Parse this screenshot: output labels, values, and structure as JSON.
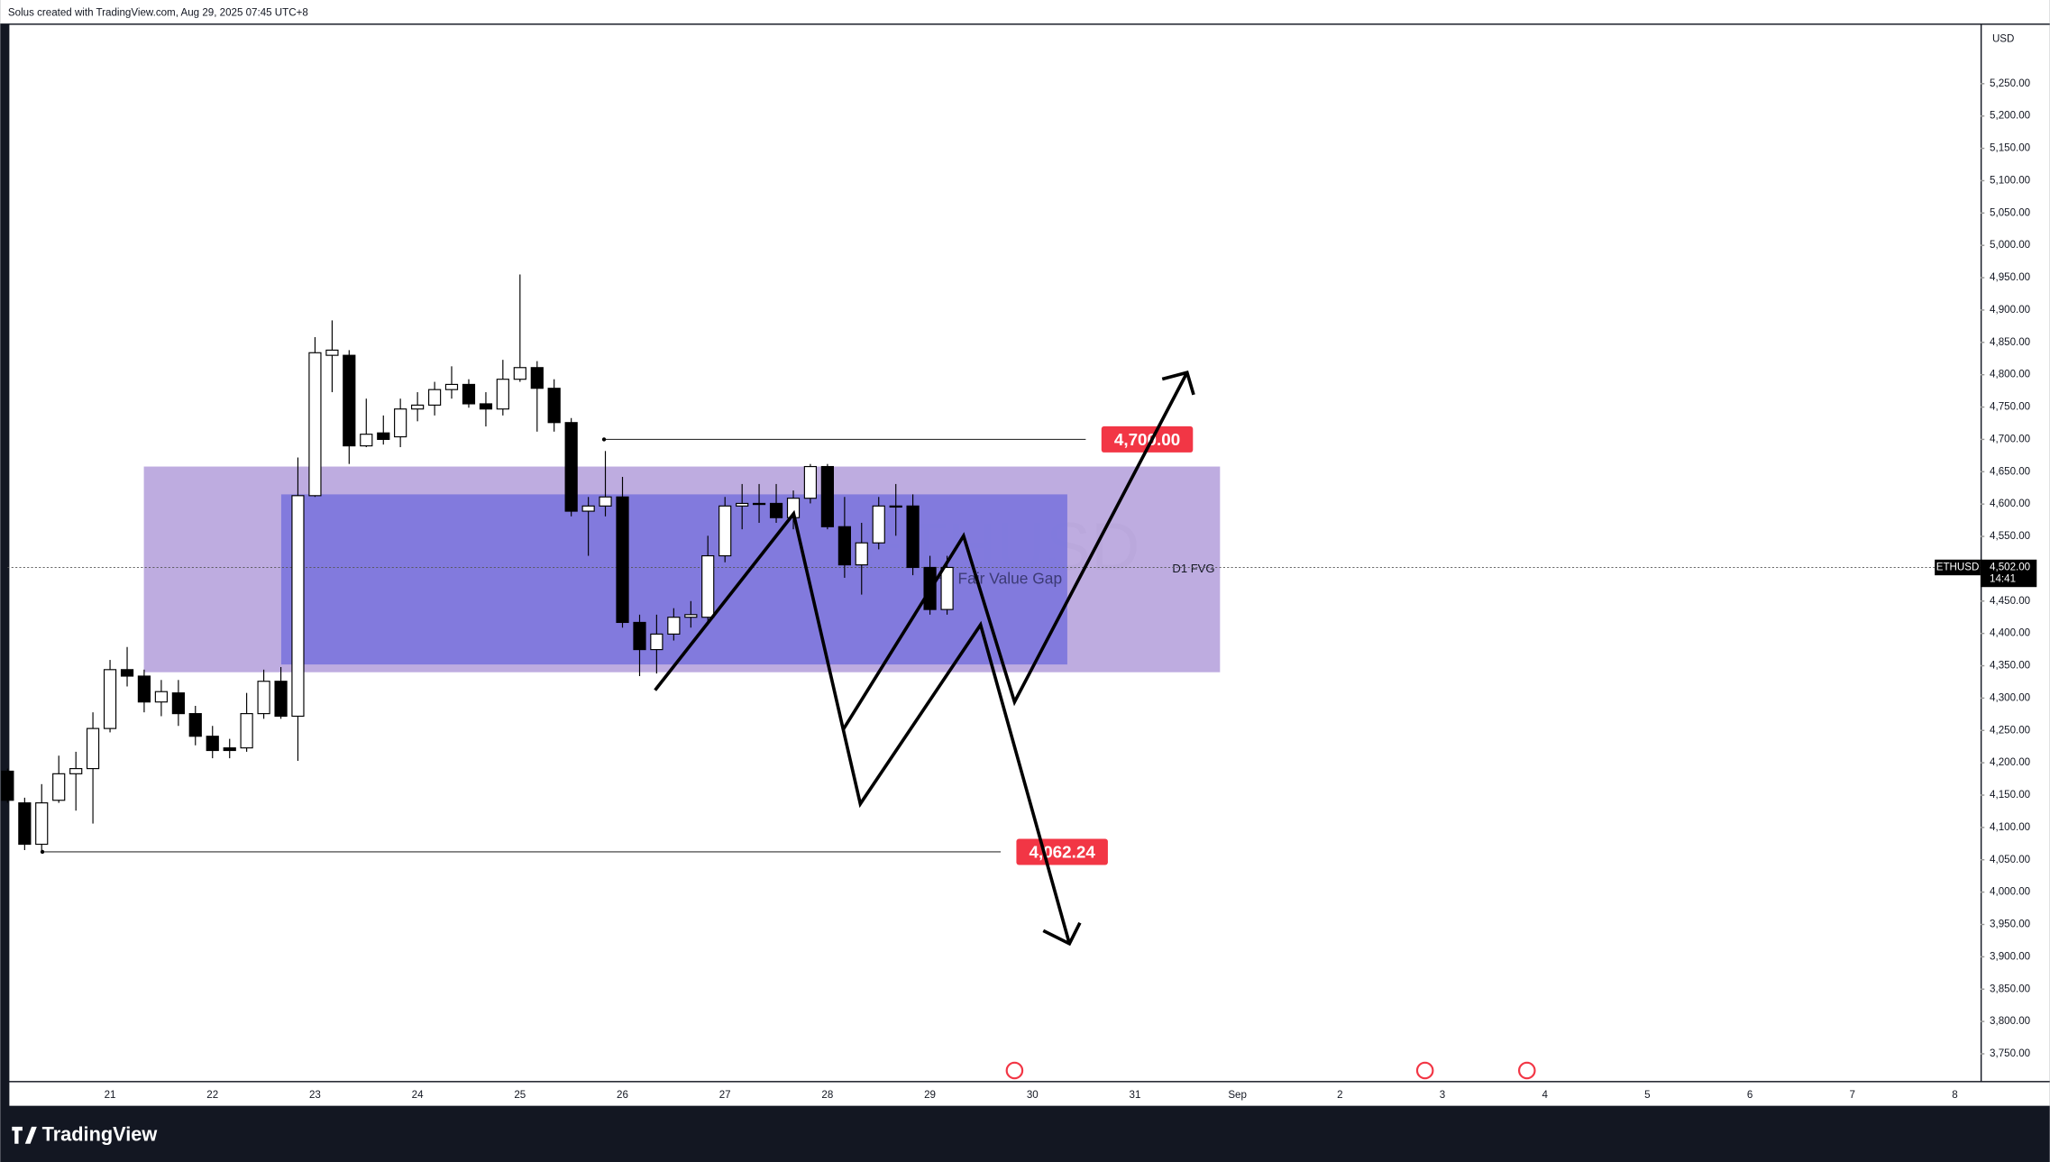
{
  "header": "Solus created with TradingView.com, Aug 29, 2025 07:45 UTC+8",
  "footer_logo": "TradingView",
  "chart_data": {
    "type": "candlestick",
    "symbol": "ETHUSD",
    "y_axis_label": "USD",
    "up_color": "#ffffff",
    "down_color": "#000000",
    "x": [
      20,
      20.167,
      20.333,
      20.5,
      20.667,
      20.833,
      21,
      21.167,
      21.333,
      21.5,
      21.667,
      21.833,
      22,
      22.167,
      22.333,
      22.5,
      22.667,
      22.833,
      23,
      23.167,
      23.333,
      23.5,
      23.667,
      23.833,
      24,
      24.167,
      24.333,
      24.5,
      24.667,
      24.833,
      25,
      25.167,
      25.333,
      25.5,
      25.667,
      25.833,
      26,
      26.167,
      26.333,
      26.5,
      26.667,
      26.833,
      27,
      27.167,
      27.333,
      27.5,
      27.667,
      27.833,
      28,
      28.167,
      28.333,
      28.5,
      28.667,
      28.833,
      29,
      29.167
    ],
    "open": [
      4187,
      4138,
      4074,
      4142,
      4183,
      4191,
      4253,
      4344,
      4334,
      4294,
      4308,
      4276,
      4241,
      4223,
      4223,
      4276,
      4326,
      4272,
      4613,
      4830,
      4830,
      4690,
      4710,
      4704,
      4747,
      4753,
      4777,
      4785,
      4755,
      4747,
      4793,
      4811,
      4779,
      4726,
      4589,
      4597,
      4611,
      4417,
      4375,
      4399,
      4425,
      4425,
      4520,
      4597,
      4601,
      4601,
      4579,
      4609,
      4658,
      4565,
      4506,
      4540,
      4597,
      4597,
      4502,
      4437
    ],
    "high": [
      4191,
      4146,
      4167,
      4211,
      4217,
      4278,
      4359,
      4379,
      4344,
      4328,
      4328,
      4288,
      4257,
      4237,
      4308,
      4344,
      4348,
      4672,
      4858,
      4884,
      4838,
      4763,
      4737,
      4763,
      4773,
      4789,
      4813,
      4793,
      4773,
      4823,
      4955,
      4821,
      4793,
      4733,
      4611,
      4682,
      4642,
      4429,
      4429,
      4439,
      4450,
      4551,
      4611,
      4631,
      4631,
      4631,
      4621,
      4662,
      4662,
      4611,
      4571,
      4611,
      4631,
      4615,
      4520,
      4520
    ],
    "low": [
      4138,
      4065,
      4062.24,
      4138,
      4126,
      4106,
      4247,
      4318,
      4278,
      4272,
      4257,
      4227,
      4207,
      4207,
      4217,
      4268,
      4268,
      4203,
      4611,
      4773,
      4662,
      4688,
      4692,
      4688,
      4728,
      4737,
      4763,
      4749,
      4720,
      4737,
      4789,
      4712,
      4712,
      4581,
      4520,
      4581,
      4409,
      4334,
      4338,
      4389,
      4409,
      4413,
      4510,
      4561,
      4571,
      4571,
      4561,
      4601,
      4561,
      4486,
      4460,
      4530,
      4551,
      4490,
      4429,
      4429
    ],
    "close": [
      4142,
      4074,
      4138,
      4183,
      4191,
      4253,
      4344,
      4334,
      4294,
      4310,
      4276,
      4241,
      4219,
      4219,
      4276,
      4326,
      4272,
      4613,
      4834,
      4838,
      4690,
      4708,
      4700,
      4747,
      4753,
      4777,
      4785,
      4755,
      4747,
      4793,
      4811,
      4779,
      4726,
      4589,
      4597,
      4611,
      4417,
      4375,
      4399,
      4425,
      4429,
      4520,
      4597,
      4601,
      4601,
      4579,
      4609,
      4658,
      4565,
      4506,
      4540,
      4597,
      4597,
      4502,
      4437,
      4502
    ],
    "xlim": [
      20,
      39.25
    ],
    "xticks": [
      21,
      22,
      23,
      24,
      25,
      26,
      27,
      28,
      29,
      30,
      31,
      {
        "value": 32,
        "label": "Sep"
      },
      {
        "value": 33,
        "label": "2"
      },
      {
        "value": 34,
        "label": "3"
      },
      {
        "value": 35,
        "label": "4"
      },
      {
        "value": 36,
        "label": "5"
      },
      {
        "value": 37,
        "label": "6"
      },
      {
        "value": 38,
        "label": "7"
      },
      {
        "value": 39,
        "label": "8"
      }
    ],
    "ylim": [
      3706,
      5343
    ],
    "yticks": [
      {
        "value": 3750,
        "label": "3,750.00"
      },
      {
        "value": 3800,
        "label": "3,800.00"
      },
      {
        "value": 3850,
        "label": "3,850.00"
      },
      {
        "value": 3900,
        "label": "3,900.00"
      },
      {
        "value": 3950,
        "label": "3,950.00"
      },
      {
        "value": 4000,
        "label": "4,000.00"
      },
      {
        "value": 4050,
        "label": "4,050.00"
      },
      {
        "value": 4100,
        "label": "4,100.00"
      },
      {
        "value": 4150,
        "label": "4,150.00"
      },
      {
        "value": 4200,
        "label": "4,200.00"
      },
      {
        "value": 4250,
        "label": "4,250.00"
      },
      {
        "value": 4300,
        "label": "4,300.00"
      },
      {
        "value": 4350,
        "label": "4,350.00"
      },
      {
        "value": 4400,
        "label": "4,400.00"
      },
      {
        "value": 4450,
        "label": "4,450.00"
      },
      {
        "value": 4500,
        "label": "4,500.00"
      },
      {
        "value": 4550,
        "label": "4,550.00"
      },
      {
        "value": 4600,
        "label": "4,600.00"
      },
      {
        "value": 4650,
        "label": "4,650.00"
      },
      {
        "value": 4700,
        "label": "4,700.00"
      },
      {
        "value": 4750,
        "label": "4,750.00"
      },
      {
        "value": 4800,
        "label": "4,800.00"
      },
      {
        "value": 4850,
        "label": "4,850.00"
      },
      {
        "value": 4900,
        "label": "4,900.00"
      },
      {
        "value": 4950,
        "label": "4,950.00"
      },
      {
        "value": 5000,
        "label": "5,000.00"
      },
      {
        "value": 5050,
        "label": "5,050.00"
      },
      {
        "value": 5100,
        "label": "5,100.00"
      },
      {
        "value": 5150,
        "label": "5,150.00"
      },
      {
        "value": 5200,
        "label": "5,200.00"
      },
      {
        "value": 5250,
        "label": "5,250.00"
      }
    ],
    "grid": false,
    "zones": [
      {
        "label": "D1 FVG",
        "x": [
          21.33,
          31.83
        ],
        "top": 4658,
        "bottom": 4340,
        "color": "#b39ddb"
      },
      {
        "label": "H4 Fair Value Gap",
        "x": [
          22.67,
          30.34
        ],
        "top": 4615,
        "bottom": 4352,
        "color": "#7b74dd"
      }
    ],
    "levels": [
      {
        "value": 4700,
        "label": "4,700.00",
        "x": [
          25.82,
          30.52
        ],
        "color": "#f23645"
      },
      {
        "value": 4062.24,
        "label": "4,062.24",
        "x": [
          20.34,
          29.69
        ],
        "color": "#f23645"
      }
    ],
    "current_price": {
      "value": 4502,
      "label": "4,502.00",
      "time": "14:41"
    }
  }
}
